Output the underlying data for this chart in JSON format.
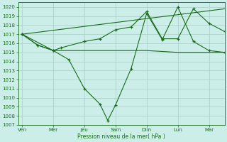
{
  "background_color": "#cceee8",
  "grid_color": "#aaccc8",
  "line_color": "#1a6b1a",
  "xlabel": "Pression niveau de la mer( hPa )",
  "ylim": [
    1007,
    1020.5
  ],
  "yticks": [
    1007,
    1008,
    1009,
    1010,
    1011,
    1012,
    1013,
    1014,
    1015,
    1016,
    1017,
    1018,
    1019,
    1020
  ],
  "xtick_labels": [
    "Ven",
    "Mer",
    "Jeu",
    "Sam",
    "Dim",
    "Lun",
    "Mar"
  ],
  "xtick_pos": [
    0,
    16,
    32,
    48,
    64,
    80,
    96
  ],
  "xlim": [
    -2,
    104
  ],
  "series1_x": [
    0,
    8,
    16,
    24,
    32,
    40,
    44,
    48,
    56,
    64,
    72,
    80,
    88,
    96,
    104
  ],
  "series1_y": [
    1017,
    1015.8,
    1015.2,
    1014.2,
    1011.0,
    1009.3,
    1007.5,
    1009.2,
    1013.2,
    1019.3,
    1016.4,
    1020.0,
    1016.2,
    1015.2,
    1015.0
  ],
  "series2_x": [
    0,
    8,
    16,
    20,
    32,
    40,
    48,
    56,
    64,
    72,
    80,
    88,
    96,
    104
  ],
  "series2_y": [
    1017,
    1015.8,
    1015.2,
    1015.5,
    1016.2,
    1016.5,
    1017.5,
    1017.8,
    1019.5,
    1016.5,
    1016.5,
    1019.8,
    1018.2,
    1017.3
  ],
  "series3_x": [
    0,
    16,
    48,
    64,
    80,
    96,
    104
  ],
  "series3_y": [
    1017,
    1015.2,
    1015.2,
    1015.2,
    1015.0,
    1015.0,
    1015.0
  ],
  "series4_x": [
    0,
    104
  ],
  "series4_y": [
    1017,
    1019.8
  ]
}
